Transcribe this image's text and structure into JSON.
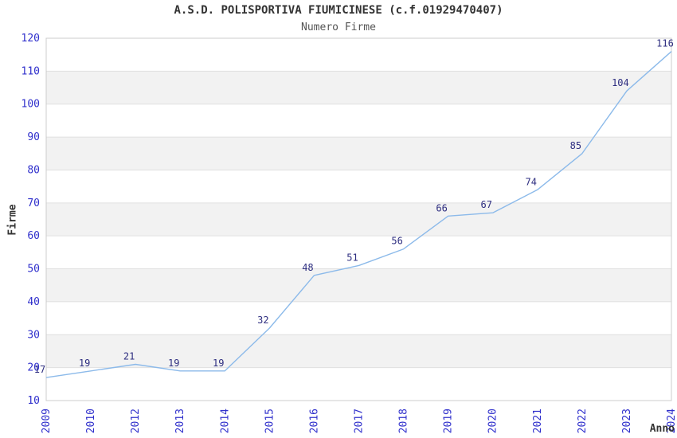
{
  "chart_data": {
    "type": "line",
    "title": "A.S.D. POLISPORTIVA FIUMICINESE (c.f.01929470407)",
    "subtitle": "Numero Firme",
    "xlabel": "Anno",
    "ylabel": "Firme",
    "categories": [
      "2009",
      "2010",
      "2012",
      "2013",
      "2014",
      "2015",
      "2016",
      "2017",
      "2018",
      "2019",
      "2020",
      "2021",
      "2022",
      "2023",
      "2024"
    ],
    "values": [
      17,
      19,
      21,
      19,
      19,
      32,
      48,
      51,
      56,
      66,
      67,
      74,
      85,
      104,
      116
    ],
    "ylim": [
      10,
      120
    ],
    "ytick_step": 10,
    "grid": "horizontal-bands-alternating",
    "legend": "none",
    "data_labels_shown": true,
    "colors": {
      "line": "#8cbaea",
      "tick_labels": "#3030cc",
      "data_labels": "#2e2e80",
      "title": "#333333",
      "subtitle": "#555555",
      "band_gray": "#f2f2f2",
      "band_white": "#ffffff",
      "gridline": "#e0e0e0",
      "plot_border": "#cccccc",
      "background": "#ffffff"
    }
  }
}
